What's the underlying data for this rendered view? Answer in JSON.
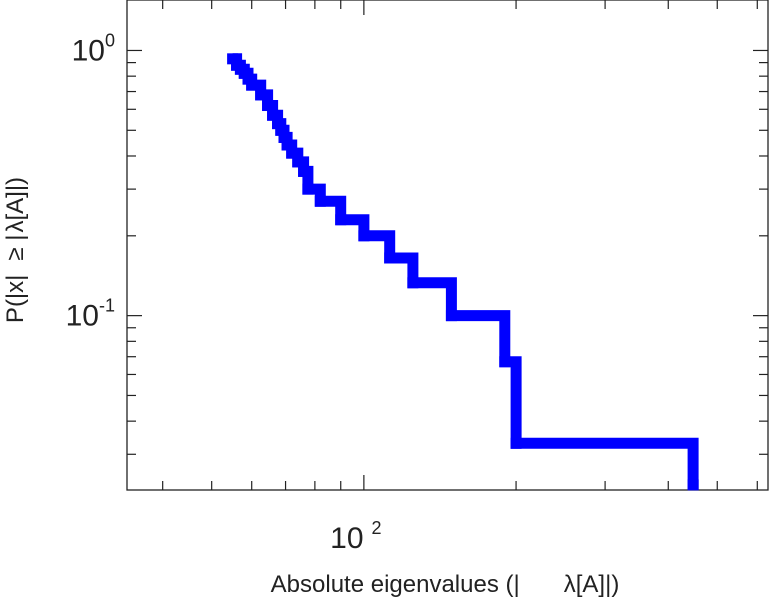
{
  "chart_data": {
    "type": "line",
    "step": true,
    "title": "",
    "xlabel_parts": [
      "Absolute eigenvalues (|",
      "λ[A]|)"
    ],
    "ylabel_parts": [
      "P(|x|",
      "≥ |",
      "λ[A]|)"
    ],
    "xscale": "log",
    "yscale": "log",
    "xlim": [
      34,
      630
    ],
    "ylim": [
      0.022,
      1.55
    ],
    "grid": false,
    "legend": "none",
    "color": "#0000ff",
    "x_major_ticks": [
      {
        "value": 100,
        "base": "10",
        "exp": "2"
      }
    ],
    "x_minor_ticks": [
      40,
      50,
      60,
      70,
      80,
      90,
      200,
      300,
      400,
      500,
      600
    ],
    "y_major_ticks": [
      {
        "value": 1,
        "base": "10",
        "exp": "0"
      },
      {
        "value": 0.1,
        "base": "10",
        "exp": "-1"
      }
    ],
    "y_minor_ticks": [
      0.03,
      0.04,
      0.05,
      0.06,
      0.07,
      0.08,
      0.09,
      0.2,
      0.3,
      0.4,
      0.5,
      0.6,
      0.7,
      0.8,
      0.9
    ],
    "series": [
      {
        "x": [
          55.0,
          56.0,
          57.0,
          58.0,
          59.0,
          60.0,
          62.5,
          64.5,
          66.0,
          67.5,
          68.5,
          69.5,
          70.5,
          72.0,
          74.0,
          76.0,
          77.5,
          82.0,
          90.0,
          100.0,
          112.5,
          125.0,
          149.0,
          190.0,
          200.0,
          448.0
        ],
        "y": [
          0.93,
          0.88,
          0.85,
          0.82,
          0.78,
          0.74,
          0.68,
          0.62,
          0.57,
          0.53,
          0.5,
          0.47,
          0.44,
          0.41,
          0.38,
          0.35,
          0.3,
          0.27,
          0.23,
          0.2,
          0.165,
          0.133,
          0.1,
          0.067,
          0.033,
          0.023
        ]
      }
    ]
  }
}
